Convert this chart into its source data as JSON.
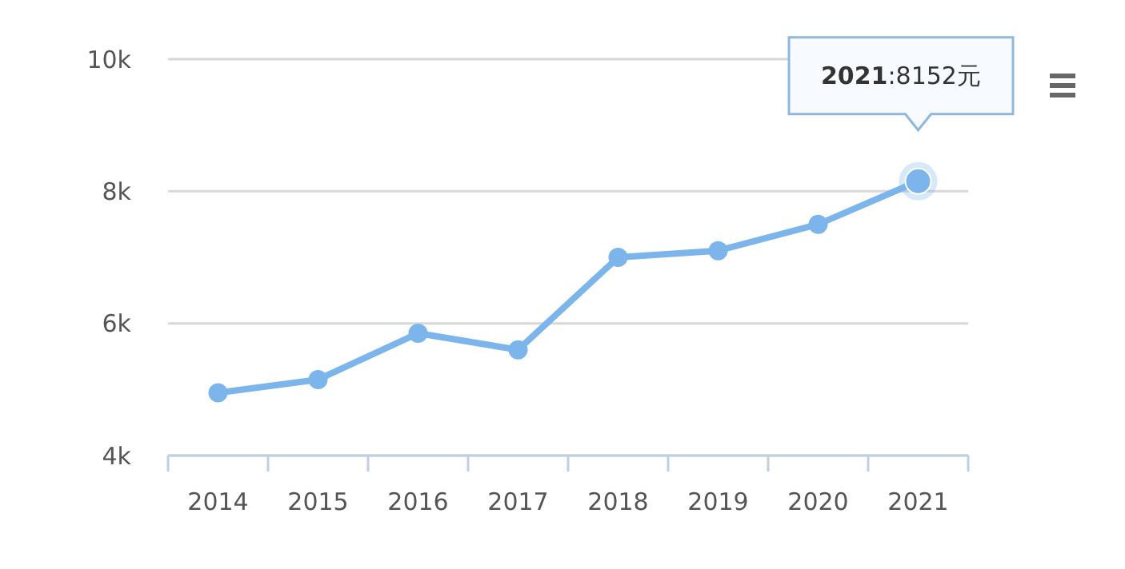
{
  "chart_data": {
    "type": "line",
    "categories": [
      "2014",
      "2015",
      "2016",
      "2017",
      "2018",
      "2019",
      "2020",
      "2021"
    ],
    "series": [
      {
        "color": "#7cb5ec",
        "values": [
          4950,
          5150,
          5850,
          5600,
          7000,
          7100,
          7500,
          8152
        ]
      }
    ],
    "ylim": [
      4000,
      10000
    ],
    "yticks": [
      {
        "value": 4000,
        "label": "4k"
      },
      {
        "value": 6000,
        "label": "6k"
      },
      {
        "value": 8000,
        "label": "8k"
      },
      {
        "value": 10000,
        "label": "10k"
      }
    ],
    "grid": "y",
    "marker": "circle",
    "annotations": [
      "2021:8152元"
    ]
  }
}
